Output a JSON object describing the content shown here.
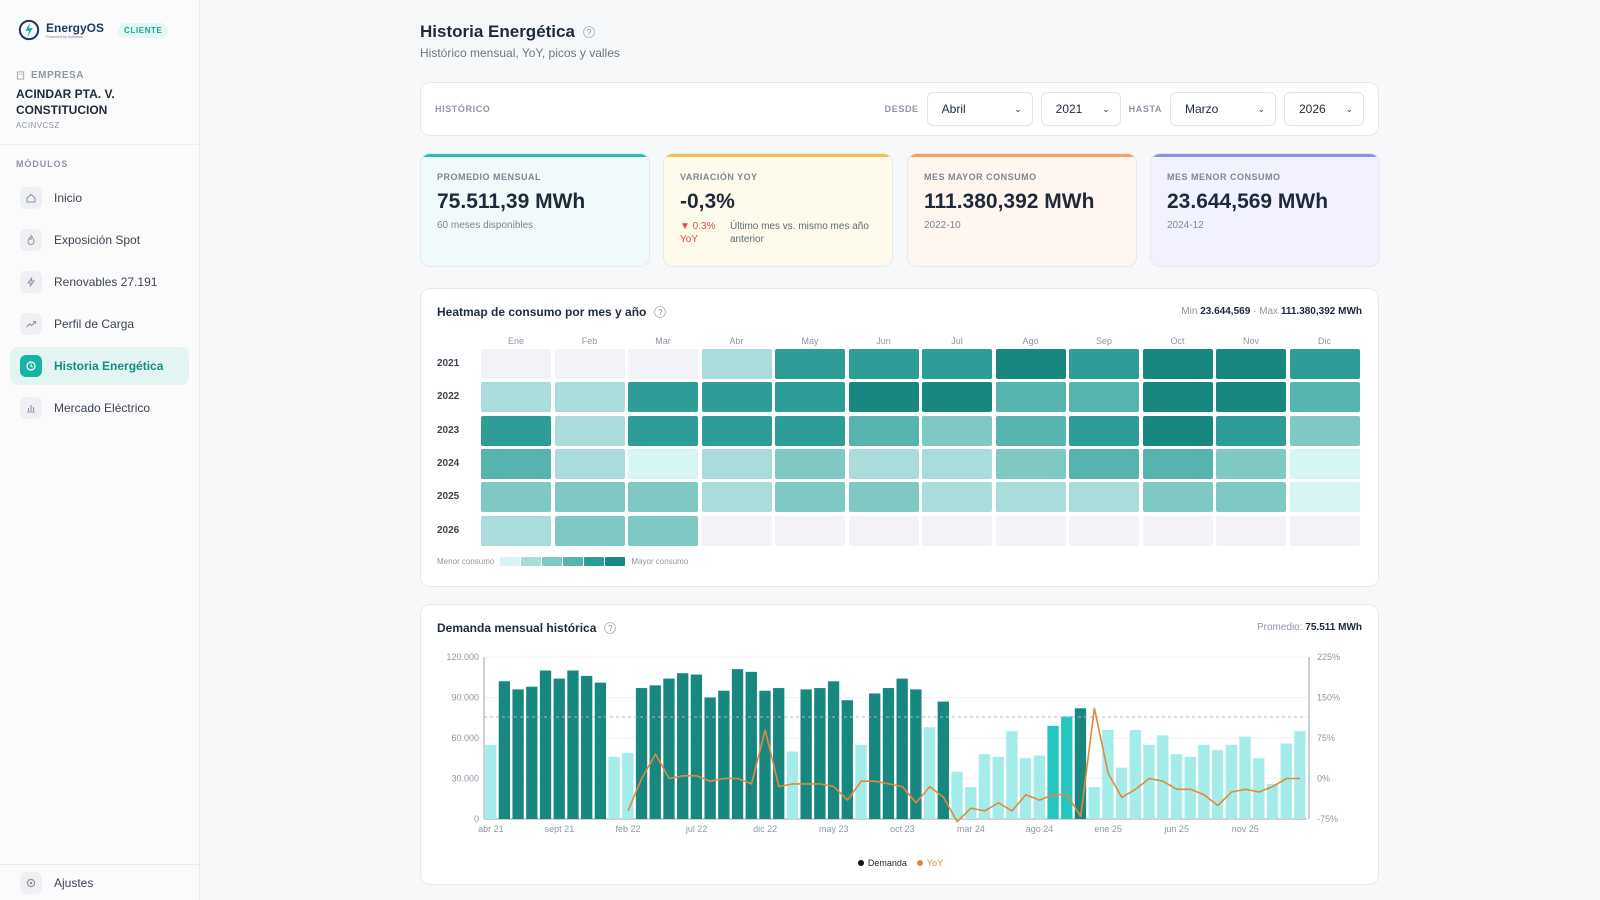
{
  "brand": {
    "name": "EnergyOS",
    "sub": "Powered by Adinesis",
    "badge": "CLIENTE"
  },
  "company": {
    "label": "EMPRESA",
    "name": "ACINDAR PTA. V. CONSTITUCION",
    "code": "ACINVCSZ"
  },
  "sidebar": {
    "title": "MÓDULOS",
    "items": [
      {
        "label": "Inicio",
        "icon": "home-icon",
        "active": false
      },
      {
        "label": "Exposición Spot",
        "icon": "flame-icon",
        "active": false
      },
      {
        "label": "Renovables 27.191",
        "icon": "bolt-icon",
        "active": false
      },
      {
        "label": "Perfil de Carga",
        "icon": "trend-icon",
        "active": false
      },
      {
        "label": "Historia Energética",
        "icon": "history-icon",
        "active": true
      },
      {
        "label": "Mercado Eléctrico",
        "icon": "bar-chart-icon",
        "active": false
      }
    ],
    "settings_label": "Ajustes"
  },
  "page": {
    "title": "Historia Energética",
    "help": "?",
    "subtitle": "Histórico mensual, YoY, picos y valles"
  },
  "filter": {
    "label": "HISTÓRICO",
    "from_label": "DESDE",
    "to_label": "HASTA",
    "from_month": "Abril",
    "from_year": "2021",
    "to_month": "Marzo",
    "to_year": "2026"
  },
  "kpis": [
    {
      "label": "PROMEDIO MENSUAL",
      "value": "75.511,39 MWh",
      "sub": "60 meses disponibles",
      "accent": "#2bbfb3",
      "bg": "#f0fafa"
    },
    {
      "label": "VARIACIÓN YOY",
      "value": "-0,3%",
      "badge": "▼ 0.3% YoY",
      "sub": "Último mes vs. mismo mes año anterior",
      "accent": "#f1c34a",
      "bg": "#fffbec"
    },
    {
      "label": "MES MAYOR CONSUMO",
      "value": "111.380,392 MWh",
      "sub": "2022-10",
      "accent": "#f0a066",
      "bg": "#fff6ef"
    },
    {
      "label": "MES MENOR CONSUMO",
      "value": "23.644,569 MWh",
      "sub": "2024-12",
      "accent": "#8b93e0",
      "bg": "#f1f2fd"
    }
  ],
  "heatmap": {
    "title": "Heatmap de consumo por mes y año",
    "min_label": "Min",
    "min_value": "23.644,569",
    "max_label": "· Max",
    "max_value": "111.380,392 MWh",
    "months": [
      "Ene",
      "Feb",
      "Mar",
      "Abr",
      "May",
      "Jun",
      "Jul",
      "Ago",
      "Sep",
      "Oct",
      "Nov",
      "Dic"
    ],
    "years": [
      "2021",
      "2022",
      "2023",
      "2024",
      "2025",
      "2026"
    ],
    "levels": [
      [
        0,
        0,
        0,
        2,
        5,
        5,
        5,
        6,
        5,
        6,
        6,
        5
      ],
      [
        2,
        2,
        5,
        5,
        5,
        6,
        6,
        4,
        4,
        6,
        6,
        4
      ],
      [
        5,
        2,
        5,
        5,
        5,
        4,
        3,
        4,
        5,
        6,
        5,
        3
      ],
      [
        4,
        2,
        1,
        2,
        3,
        2,
        2,
        3,
        4,
        4,
        3,
        1
      ],
      [
        3,
        3,
        3,
        2,
        3,
        3,
        2,
        2,
        2,
        3,
        3,
        1
      ],
      [
        2,
        3,
        3,
        0,
        0,
        0,
        0,
        0,
        0,
        0,
        0,
        0
      ]
    ],
    "palette": [
      "#f1f3f6",
      "#d7f5f3",
      "#a9dcda",
      "#7fc9c5",
      "#56b3ae",
      "#2e9d97",
      "#17877f"
    ],
    "legend_low": "Menor consumo",
    "legend_high": "Mayor consumo"
  },
  "demand": {
    "title": "Demanda mensual histórica",
    "avg_label": "Promedio:",
    "avg_value": "75.511 MWh",
    "legend_demand": "Demanda",
    "legend_yoy": "YoY"
  },
  "chart_data": {
    "type": "bar",
    "title": "Demanda mensual histórica",
    "x": [
      "abr 21",
      "may 21",
      "jun 21",
      "jul 21",
      "ago 21",
      "sept 21",
      "oct 21",
      "nov 21",
      "dic 21",
      "ene 22",
      "feb 22",
      "mar 22",
      "abr 22",
      "may 22",
      "jun 22",
      "jul 22",
      "ago 22",
      "sept 22",
      "oct 22",
      "nov 22",
      "dic 22",
      "ene 23",
      "feb 23",
      "mar 23",
      "abr 23",
      "may 23",
      "jun 23",
      "jul 23",
      "ago 23",
      "sept 23",
      "oct 23",
      "nov 23",
      "dic 23",
      "ene 24",
      "feb 24",
      "mar 24",
      "abr 24",
      "may 24",
      "jun 24",
      "jul 24",
      "ago 24",
      "sept 24",
      "oct 24",
      "nov 24",
      "dic 24",
      "ene 25",
      "feb 25",
      "mar 25",
      "abr 25",
      "may 25",
      "jun 25",
      "jul 25",
      "ago 25",
      "sept 25",
      "oct 25",
      "nov 25",
      "dic 25",
      "ene 26",
      "feb 26",
      "mar 26"
    ],
    "xtick_labels": [
      "abr 21",
      "sept 21",
      "feb 22",
      "jul 22",
      "dic 22",
      "may 23",
      "oct 23",
      "mar 24",
      "ago 24",
      "ene 25",
      "jun 25",
      "nov 25"
    ],
    "series": [
      {
        "name": "Demanda",
        "values": [
          55000,
          102000,
          96000,
          98000,
          110000,
          104000,
          110000,
          106000,
          101000,
          46000,
          49000,
          97000,
          99000,
          104000,
          108000,
          107000,
          90000,
          95000,
          111000,
          109000,
          95000,
          97000,
          50000,
          96000,
          97000,
          102000,
          88000,
          55000,
          93000,
          97000,
          104000,
          96000,
          68000,
          87000,
          35000,
          23644,
          48000,
          46000,
          65000,
          45000,
          47000,
          69000,
          76000,
          82000,
          23644,
          66000,
          38000,
          66000,
          55000,
          62000,
          48000,
          46000,
          55000,
          51000,
          55000,
          61000,
          45000,
          26000,
          56000,
          65000
        ]
      },
      {
        "name": "YoY",
        "values": [
          null,
          null,
          null,
          null,
          null,
          null,
          null,
          null,
          null,
          null,
          -60,
          0,
          45,
          0,
          5,
          5,
          -5,
          0,
          0,
          -10,
          90,
          -15,
          -10,
          -10,
          -10,
          -15,
          -40,
          -5,
          -5,
          -10,
          -15,
          -45,
          -15,
          -35,
          -80,
          -55,
          -60,
          -45,
          -60,
          -30,
          -40,
          -30,
          -30,
          -70,
          130,
          10,
          -35,
          -20,
          0,
          -5,
          -20,
          -20,
          -30,
          -50,
          -25,
          -20,
          -25,
          -15,
          0,
          0
        ]
      }
    ],
    "ylabel": "",
    "ylim": [
      0,
      120000
    ],
    "yticks": [
      "120.000",
      "90.000",
      "60.000",
      "30.000",
      "0"
    ],
    "y2lim": [
      -75,
      225
    ],
    "y2ticks": [
      "225%",
      "150%",
      "75%",
      "0%",
      "-75%"
    ],
    "reference_line": 75511,
    "colors": {
      "high": "#17877f",
      "low": "#a4ece9",
      "peak": "#26c6c0",
      "yoy": "#e08a3c"
    },
    "legend": "bottom"
  }
}
